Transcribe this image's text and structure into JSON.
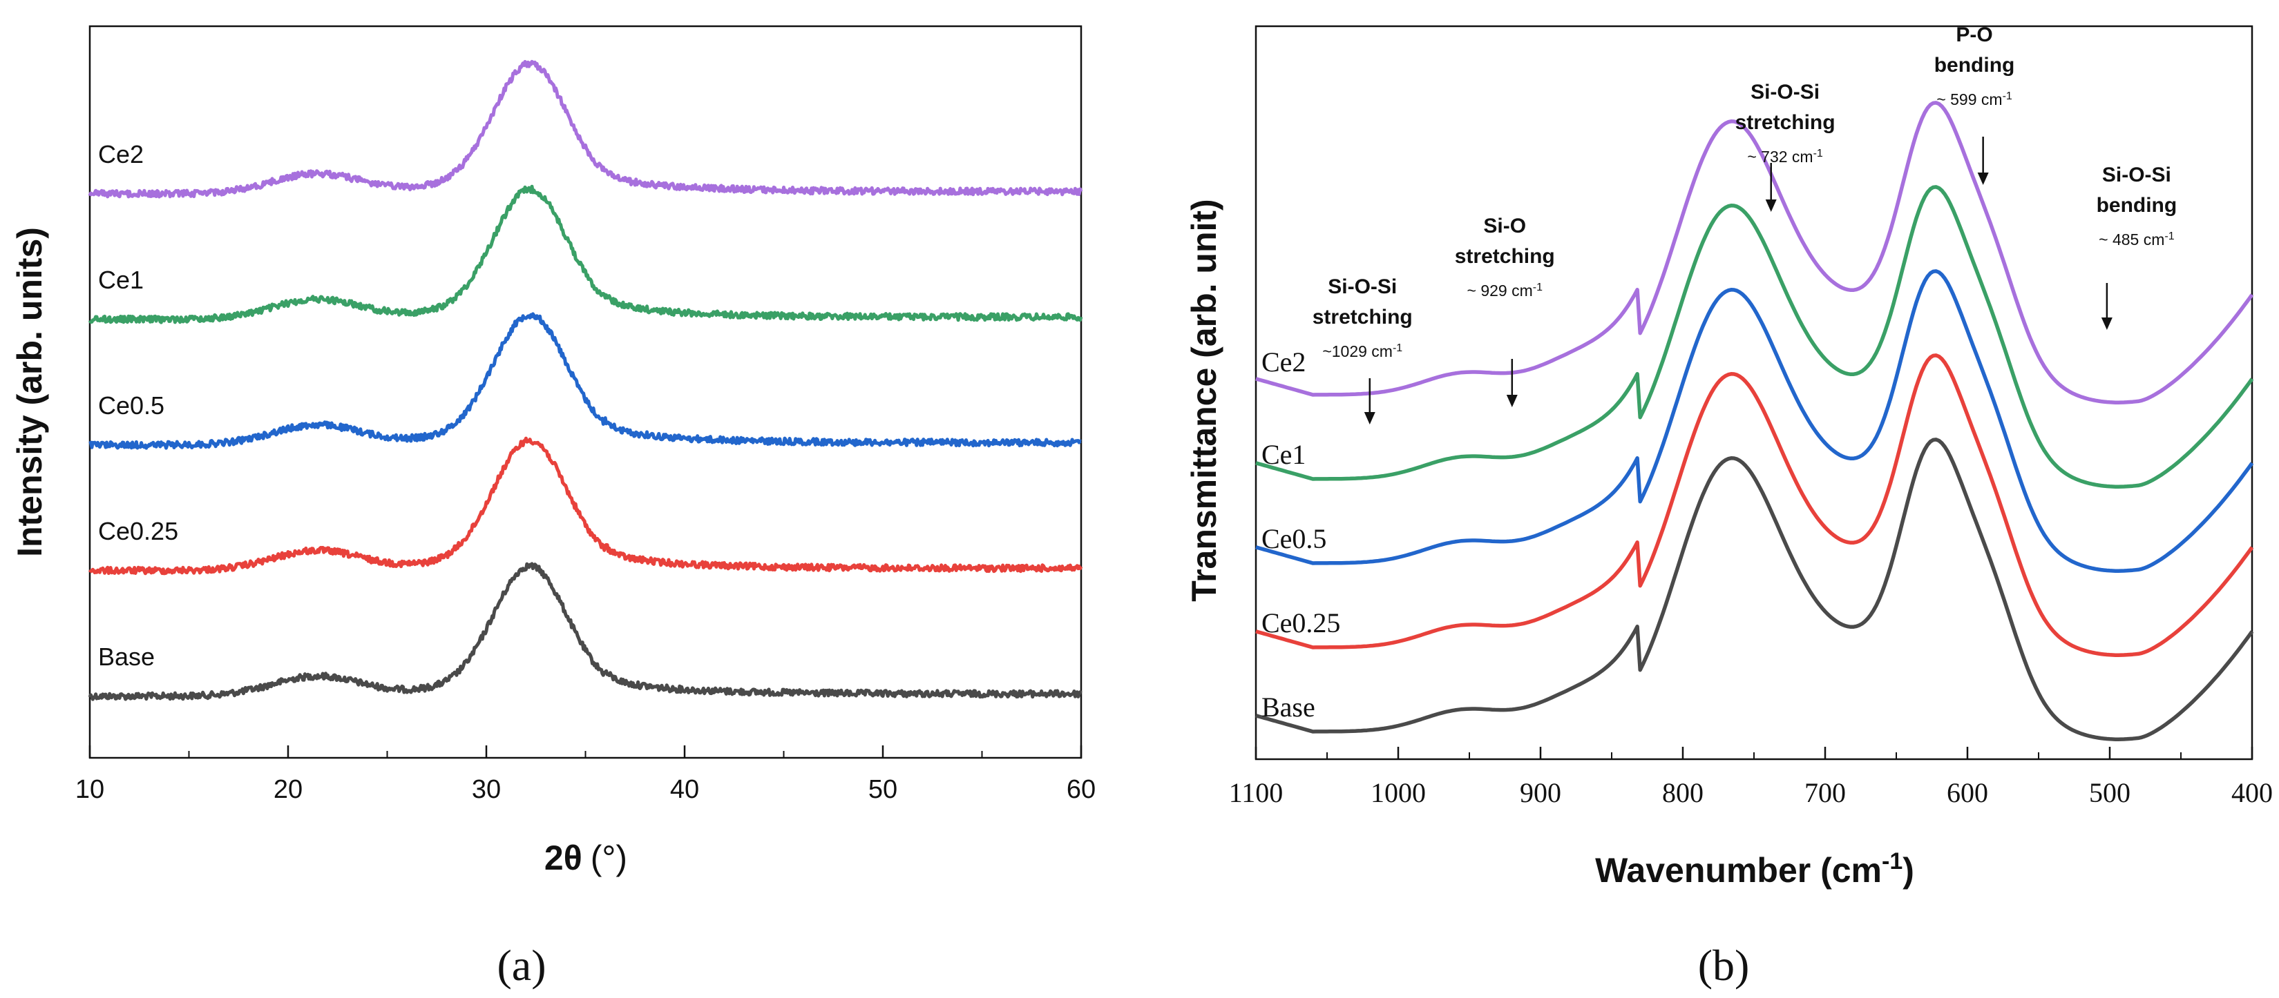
{
  "chart_data": [
    {
      "type": "line",
      "panel_label": "(a)",
      "xlabel_main": "2θ",
      "xlabel_unit": "(°)",
      "ylabel": "Intensity (arb. units)",
      "xlim": [
        10,
        60
      ],
      "xticks": [
        "10",
        "20",
        "30",
        "40",
        "50",
        "60"
      ],
      "series": [
        {
          "name": "Base",
          "color": "#4a4a4a",
          "offset": 0,
          "label_x": 11
        },
        {
          "name": "Ce0.25",
          "color": "#e8413b",
          "offset": 1,
          "label_x": 11
        },
        {
          "name": "Ce0.5",
          "color": "#2266cc",
          "offset": 2,
          "label_x": 11
        },
        {
          "name": "Ce1",
          "color": "#3aa066",
          "offset": 3,
          "label_x": 11
        },
        {
          "name": "Ce2",
          "color": "#a770dd",
          "offset": 4,
          "label_x": 11
        }
      ],
      "shape": {
        "baseline_before": 0.0,
        "hump_center": 21.5,
        "hump_height": 0.22,
        "peak_center": 32.2,
        "peak_height": 1.35,
        "peak_width": 2.6,
        "tail_level": 0.05
      }
    },
    {
      "type": "line",
      "panel_label": "(b)",
      "xlabel_main": "Wavenumber (cm",
      "xlabel_sup": "-1",
      "xlabel_close": ")",
      "ylabel": "Transmittance (arb. unit)",
      "xlim": [
        1100,
        400
      ],
      "xticks": [
        "1100",
        "1000",
        "900",
        "800",
        "700",
        "600",
        "500",
        "400"
      ],
      "series": [
        {
          "name": "Base",
          "color": "#4a4a4a",
          "offset": 0
        },
        {
          "name": "Ce0.25",
          "color": "#e8413b",
          "offset": 1
        },
        {
          "name": "Ce0.5",
          "color": "#2266cc",
          "offset": 2
        },
        {
          "name": "Ce1",
          "color": "#3aa066",
          "offset": 3
        },
        {
          "name": "Ce2",
          "color": "#a770dd",
          "offset": 4
        }
      ],
      "annotations": [
        {
          "lines": [
            "Si-O-Si",
            "stretching"
          ],
          "value": "~1029 cm",
          "sup": "-1",
          "x": 1029
        },
        {
          "lines": [
            "Si-O",
            "stretching"
          ],
          "value": "~ 929 cm",
          "sup": "-1",
          "x": 929
        },
        {
          "lines": [
            "Si-O-Si",
            "stretching"
          ],
          "value": "~ 732 cm",
          "sup": "-1",
          "x": 732
        },
        {
          "lines": [
            "P-O",
            "bending"
          ],
          "value": "~ 599 cm",
          "sup": "-1",
          "x": 599
        },
        {
          "lines": [
            "Si-O-Si",
            "bending"
          ],
          "value": "~ 485 cm",
          "sup": "-1",
          "x": 485
        }
      ]
    }
  ]
}
